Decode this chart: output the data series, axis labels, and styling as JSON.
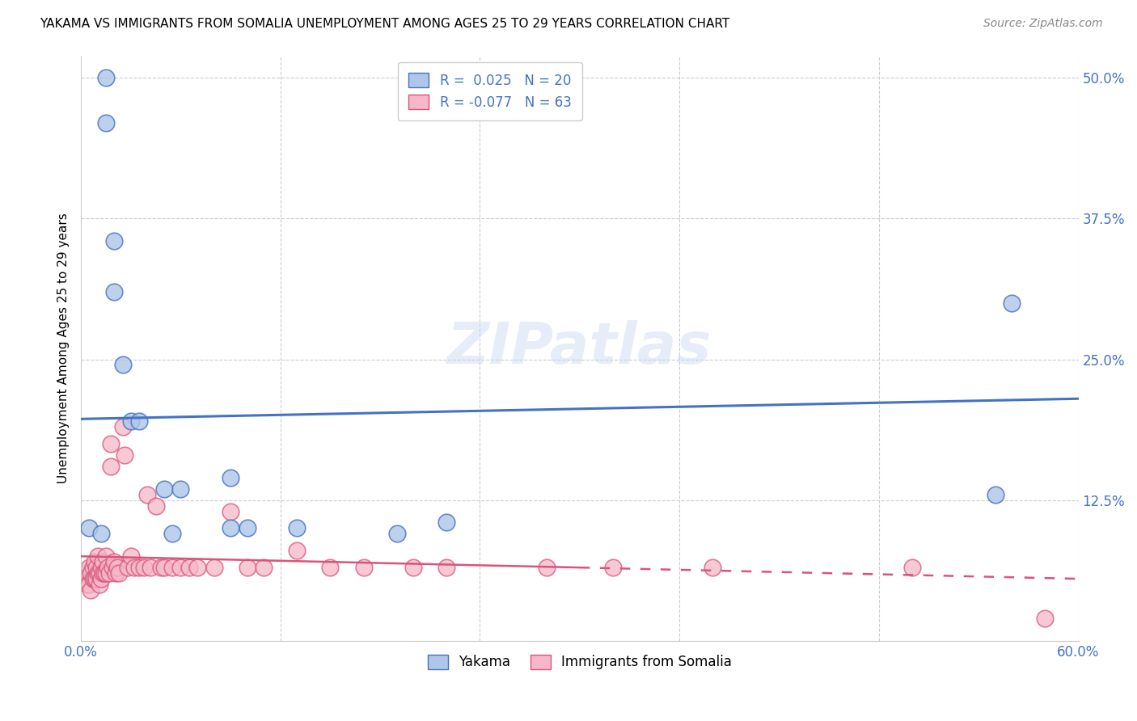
{
  "title": "YAKAMA VS IMMIGRANTS FROM SOMALIA UNEMPLOYMENT AMONG AGES 25 TO 29 YEARS CORRELATION CHART",
  "source": "Source: ZipAtlas.com",
  "ylabel": "Unemployment Among Ages 25 to 29 years",
  "y_ticks": [
    0.0,
    0.125,
    0.25,
    0.375,
    0.5
  ],
  "y_tick_labels": [
    "",
    "12.5%",
    "25.0%",
    "37.5%",
    "50.0%"
  ],
  "watermark": "ZIPatlas",
  "legend1_label": "R =  0.025   N = 20",
  "legend2_label": "R = -0.077   N = 63",
  "yakama_color": "#aec6e8",
  "somalia_color": "#f5b8c8",
  "yakama_line_color": "#4472c4",
  "somalia_line_color": "#d9547a",
  "legend_label1": "Yakama",
  "legend_label2": "Immigrants from Somalia",
  "yakama_points_x": [
    0.005,
    0.012,
    0.015,
    0.015,
    0.02,
    0.02,
    0.025,
    0.03,
    0.035,
    0.05,
    0.055,
    0.06,
    0.09,
    0.09,
    0.1,
    0.13,
    0.19,
    0.22,
    0.55,
    0.56
  ],
  "yakama_points_y": [
    0.1,
    0.095,
    0.46,
    0.5,
    0.355,
    0.31,
    0.245,
    0.195,
    0.195,
    0.135,
    0.095,
    0.135,
    0.145,
    0.1,
    0.1,
    0.1,
    0.095,
    0.105,
    0.13,
    0.3
  ],
  "somalia_points_x": [
    0.003,
    0.004,
    0.004,
    0.005,
    0.005,
    0.006,
    0.006,
    0.007,
    0.007,
    0.008,
    0.008,
    0.009,
    0.009,
    0.01,
    0.01,
    0.011,
    0.011,
    0.012,
    0.012,
    0.013,
    0.013,
    0.014,
    0.015,
    0.015,
    0.016,
    0.017,
    0.018,
    0.018,
    0.019,
    0.02,
    0.021,
    0.022,
    0.023,
    0.025,
    0.026,
    0.028,
    0.03,
    0.032,
    0.035,
    0.038,
    0.04,
    0.042,
    0.045,
    0.048,
    0.05,
    0.055,
    0.06,
    0.065,
    0.07,
    0.08,
    0.09,
    0.1,
    0.11,
    0.13,
    0.15,
    0.17,
    0.2,
    0.22,
    0.28,
    0.32,
    0.38,
    0.5,
    0.58
  ],
  "somalia_points_y": [
    0.055,
    0.06,
    0.05,
    0.065,
    0.05,
    0.06,
    0.045,
    0.065,
    0.055,
    0.07,
    0.055,
    0.065,
    0.055,
    0.075,
    0.06,
    0.06,
    0.05,
    0.065,
    0.055,
    0.07,
    0.06,
    0.06,
    0.075,
    0.06,
    0.065,
    0.06,
    0.175,
    0.155,
    0.065,
    0.07,
    0.06,
    0.065,
    0.06,
    0.19,
    0.165,
    0.065,
    0.075,
    0.065,
    0.065,
    0.065,
    0.13,
    0.065,
    0.12,
    0.065,
    0.065,
    0.065,
    0.065,
    0.065,
    0.065,
    0.065,
    0.115,
    0.065,
    0.065,
    0.08,
    0.065,
    0.065,
    0.065,
    0.065,
    0.065,
    0.065,
    0.065,
    0.065,
    0.02
  ],
  "x_min": 0.0,
  "x_max": 0.6,
  "y_min": 0.0,
  "y_max": 0.52,
  "yakama_trendline_y0": 0.197,
  "yakama_trendline_y1": 0.215,
  "somalia_trendline_y0": 0.075,
  "somalia_trendline_y1": 0.055
}
